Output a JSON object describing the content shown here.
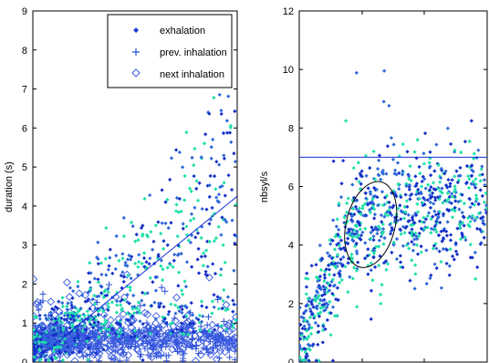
{
  "chart_data": [
    {
      "type": "scatter",
      "title": "",
      "xlabel": "",
      "ylabel": "duration (s)",
      "ylim": [
        0,
        9
      ],
      "yticks": [
        0,
        1,
        2,
        3,
        4,
        5,
        6,
        7,
        8,
        9
      ],
      "yticklabels": [
        "0",
        "1",
        "2",
        "3",
        "4",
        "5",
        "6",
        "7",
        "8",
        "9"
      ],
      "xlim": [
        0,
        1
      ],
      "grid": false,
      "legend_position": "top-right",
      "legend": [
        {
          "label": "exhalation",
          "marker": "dot",
          "color": "#1f3fd6"
        },
        {
          "label": "prev. inhalation",
          "marker": "plus",
          "color": "#2b4fd6"
        },
        {
          "label": "next inhalation",
          "marker": "diamond-open",
          "color": "#3a5ae0"
        }
      ],
      "colors": {
        "dark": "#1530c8",
        "mid": "#2e68d8",
        "teal": "#1ee0a8",
        "regression": "#1a2fd8"
      },
      "regression_line": {
        "x": [
          0,
          1
        ],
        "y": [
          0,
          4.25
        ]
      },
      "series": [
        {
          "name": "exhalation",
          "marker": "dot",
          "color": "#1f3fd6",
          "count": 820,
          "pattern": "rises with x, spread grows to ~6.5 s"
        },
        {
          "name": "prev. inhalation",
          "marker": "plus",
          "color": "#2b4fd6",
          "count": 360,
          "pattern": "flat band ~0.5 s, outliers to ~2 s"
        },
        {
          "name": "next inhalation",
          "marker": "diamond-open",
          "color": "#3a5ae0",
          "count": 360,
          "pattern": "flat band ~0.5 s, outliers to ~2 s"
        }
      ]
    },
    {
      "type": "scatter",
      "title": "",
      "xlabel": "",
      "ylabel": "nbsyl/s",
      "ylim": [
        0,
        12
      ],
      "yticks": [
        0,
        2,
        4,
        6,
        8,
        10,
        12
      ],
      "yticklabels": [
        "0",
        "2",
        "4",
        "6",
        "8",
        "10",
        "12"
      ],
      "xlim": [
        0,
        1
      ],
      "xticks": [
        0.335,
        0.665
      ],
      "grid": false,
      "colors": {
        "dark": "#1530c8",
        "mid": "#2e68d8",
        "teal": "#1ee0a8",
        "hline": "#1a2fd8",
        "ellipse": "#000000"
      },
      "hline_y": 7,
      "ellipse": {
        "cx": 0.38,
        "cy": 4.7,
        "rx": 0.13,
        "ry": 1.5
      },
      "series": [
        {
          "name": "exhalation",
          "marker": "dot",
          "color": "#1f3fd6",
          "count": 920,
          "pattern": "rises from 0 to ~5 at small x, then flat ~5 with spread 2.5–8"
        }
      ]
    }
  ]
}
